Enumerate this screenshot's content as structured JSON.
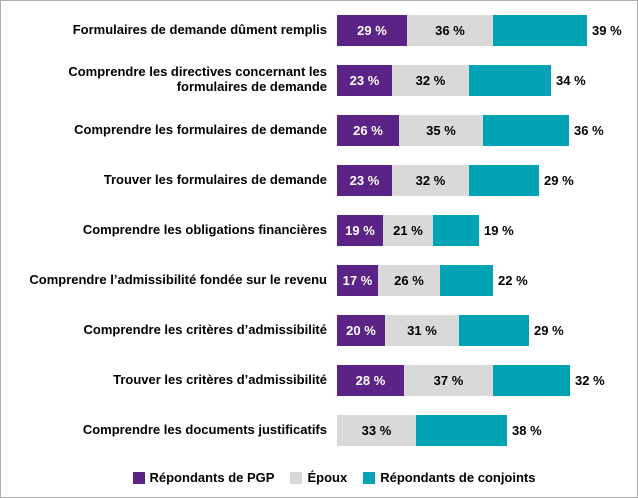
{
  "chart_data": {
    "type": "bar",
    "orientation": "horizontal",
    "stacked": true,
    "value_suffix": " %",
    "legend_position": "bottom",
    "grid": false,
    "axes_shown": false,
    "categories": [
      "Formulaires de demande dûment remplis",
      "Comprendre les directives concernant les formulaires de demande",
      "Comprendre les formulaires de demande",
      "Trouver les formulaires de demande",
      "Comprendre les obligations financières",
      "Comprendre l’admissibilité fondée sur le revenu",
      "Comprendre les critères d’admissibilité",
      "Trouver les critères d’admissibilité",
      "Comprendre les documents justificatifs"
    ],
    "series": [
      {
        "key": "pgp",
        "name": "Répondants de PGP",
        "color": "#5b2385",
        "label_color": "#ffffff",
        "value_labels": "inside",
        "values": [
          29,
          23,
          26,
          23,
          19,
          17,
          20,
          28,
          null
        ]
      },
      {
        "key": "epoux",
        "name": "Époux",
        "color": "#d9d9d9",
        "label_color": "#000000",
        "value_labels": "inside",
        "values": [
          36,
          32,
          35,
          32,
          21,
          26,
          31,
          37,
          33
        ]
      },
      {
        "key": "conjoints",
        "name": "Répondants de conjoints",
        "color": "#00a3b4",
        "label_color": "#000000",
        "value_labels": "outside",
        "values": [
          39,
          34,
          36,
          29,
          19,
          22,
          29,
          32,
          38
        ]
      }
    ]
  }
}
